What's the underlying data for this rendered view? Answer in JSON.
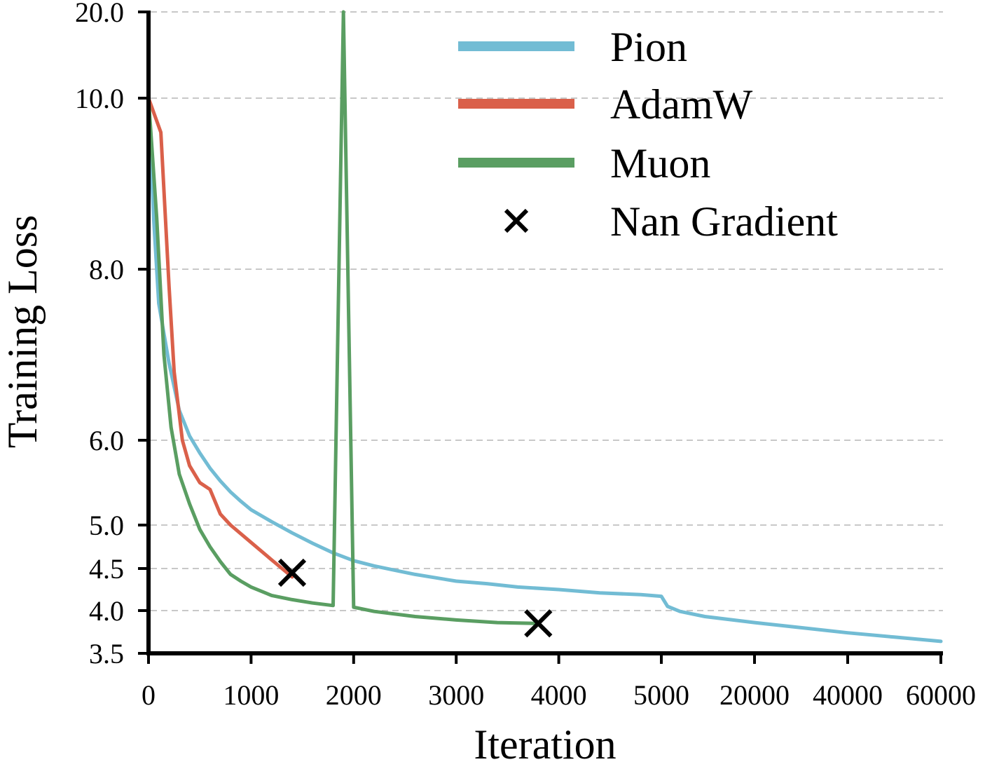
{
  "chart_data": {
    "type": "line",
    "title": "",
    "xlabel": "Iteration",
    "ylabel": "Training Loss",
    "y_scale": "piecewise",
    "x_scale": "piecewise (0–5000 linear, then 5000–60000 compressed)",
    "grid": "horizontal dashed",
    "legend_position": "top-right",
    "x_ticks": [
      "0",
      "1000",
      "2000",
      "3000",
      "4000",
      "5000",
      "20000",
      "40000",
      "60000"
    ],
    "x_tick_values": [
      0,
      1000,
      2000,
      3000,
      4000,
      5000,
      20000,
      40000,
      60000
    ],
    "y_ticks": [
      "3.5",
      "4.0",
      "4.5",
      "5.0",
      "6.0",
      "8.0",
      "10.0",
      "20.0"
    ],
    "y_tick_values": [
      3.5,
      4.0,
      4.5,
      5.0,
      6.0,
      8.0,
      10.0,
      20.0
    ],
    "xlim": [
      0,
      60000
    ],
    "ylim": [
      3.5,
      20.0
    ],
    "series": [
      {
        "name": "Pion",
        "color": "#72BCD4",
        "points": [
          [
            0,
            10.0
          ],
          [
            50,
            8.6
          ],
          [
            100,
            7.6
          ],
          [
            200,
            6.9
          ],
          [
            300,
            6.35
          ],
          [
            400,
            6.05
          ],
          [
            500,
            5.85
          ],
          [
            600,
            5.67
          ],
          [
            700,
            5.52
          ],
          [
            800,
            5.39
          ],
          [
            900,
            5.28
          ],
          [
            1000,
            5.18
          ],
          [
            1200,
            5.04
          ],
          [
            1400,
            4.91
          ],
          [
            1600,
            4.79
          ],
          [
            1800,
            4.68
          ],
          [
            2000,
            4.59
          ],
          [
            2200,
            4.53
          ],
          [
            2400,
            4.48
          ],
          [
            2600,
            4.43
          ],
          [
            2800,
            4.39
          ],
          [
            3000,
            4.35
          ],
          [
            3300,
            4.32
          ],
          [
            3600,
            4.28
          ],
          [
            4000,
            4.25
          ],
          [
            4400,
            4.21
          ],
          [
            4800,
            4.19
          ],
          [
            5000,
            4.17
          ],
          [
            6000,
            4.05
          ],
          [
            8000,
            3.99
          ],
          [
            12000,
            3.93
          ],
          [
            20000,
            3.86
          ],
          [
            30000,
            3.8
          ],
          [
            40000,
            3.74
          ],
          [
            50000,
            3.69
          ],
          [
            60000,
            3.64
          ]
        ]
      },
      {
        "name": "AdamW",
        "color": "#DA604A",
        "points": [
          [
            0,
            10.0
          ],
          [
            120,
            9.6
          ],
          [
            200,
            7.8
          ],
          [
            250,
            6.8
          ],
          [
            330,
            6.0
          ],
          [
            400,
            5.7
          ],
          [
            500,
            5.5
          ],
          [
            600,
            5.42
          ],
          [
            700,
            5.13
          ],
          [
            800,
            5.0
          ],
          [
            1000,
            4.8
          ],
          [
            1200,
            4.6
          ],
          [
            1400,
            4.4
          ]
        ]
      },
      {
        "name": "Muon",
        "color": "#5A9E62",
        "points": [
          [
            0,
            10.0
          ],
          [
            80,
            8.6
          ],
          [
            150,
            7.0
          ],
          [
            220,
            6.15
          ],
          [
            300,
            5.6
          ],
          [
            400,
            5.25
          ],
          [
            500,
            4.95
          ],
          [
            600,
            4.75
          ],
          [
            700,
            4.58
          ],
          [
            800,
            4.43
          ],
          [
            900,
            4.35
          ],
          [
            1000,
            4.28
          ],
          [
            1200,
            4.18
          ],
          [
            1400,
            4.13
          ],
          [
            1600,
            4.09
          ],
          [
            1800,
            4.06
          ],
          [
            1900,
            20.0
          ],
          [
            2000,
            4.04
          ],
          [
            2200,
            3.99
          ],
          [
            2600,
            3.93
          ],
          [
            3000,
            3.89
          ],
          [
            3400,
            3.86
          ],
          [
            3800,
            3.85
          ]
        ]
      }
    ],
    "markers": {
      "name": "Nan Gradient",
      "symbol": "x",
      "color": "#000000",
      "points": [
        [
          1400,
          4.45
        ],
        [
          3800,
          3.85
        ]
      ]
    },
    "legend": [
      "Pion",
      "AdamW",
      "Muon",
      "Nan Gradient"
    ]
  }
}
